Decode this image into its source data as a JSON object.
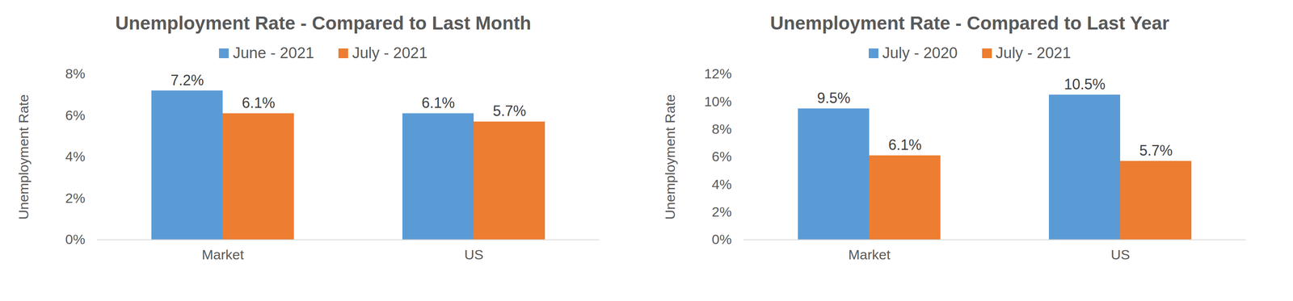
{
  "chart_data": [
    {
      "type": "bar",
      "title": "Unemployment Rate - Compared to Last Month",
      "y_label": "Unemployment Rate",
      "categories": [
        "Market",
        "US"
      ],
      "series": [
        {
          "name": "June - 2021",
          "color": "#5b9bd5",
          "values": [
            7.2,
            6.1
          ],
          "value_labels": [
            "7.2%",
            "6.1%"
          ]
        },
        {
          "name": "July - 2021",
          "color": "#ed7d31",
          "values": [
            6.1,
            5.7
          ],
          "value_labels": [
            "6.1%",
            "5.7%"
          ]
        }
      ],
      "ylim": [
        0,
        8
      ],
      "yticks": [
        {
          "value": 0,
          "label": "0%"
        },
        {
          "value": 2,
          "label": "2%"
        },
        {
          "value": 4,
          "label": "4%"
        },
        {
          "value": 6,
          "label": "6%"
        },
        {
          "value": 8,
          "label": "8%"
        }
      ],
      "grid": false,
      "legend": "top",
      "data_labels": true
    },
    {
      "type": "bar",
      "title": "Unemployment Rate - Compared to Last Year",
      "y_label": "Unemployment Rate",
      "categories": [
        "Market",
        "US"
      ],
      "series": [
        {
          "name": "July - 2020",
          "color": "#5b9bd5",
          "values": [
            9.5,
            10.5
          ],
          "value_labels": [
            "9.5%",
            "10.5%"
          ]
        },
        {
          "name": "July - 2021",
          "color": "#ed7d31",
          "values": [
            6.1,
            5.7
          ],
          "value_labels": [
            "6.1%",
            "5.7%"
          ]
        }
      ],
      "ylim": [
        0,
        12
      ],
      "yticks": [
        {
          "value": 0,
          "label": "0%"
        },
        {
          "value": 2,
          "label": "2%"
        },
        {
          "value": 4,
          "label": "4%"
        },
        {
          "value": 6,
          "label": "6%"
        },
        {
          "value": 8,
          "label": "8%"
        },
        {
          "value": 10,
          "label": "10%"
        },
        {
          "value": 12,
          "label": "12%"
        }
      ],
      "grid": false,
      "legend": "top",
      "data_labels": true
    }
  ]
}
